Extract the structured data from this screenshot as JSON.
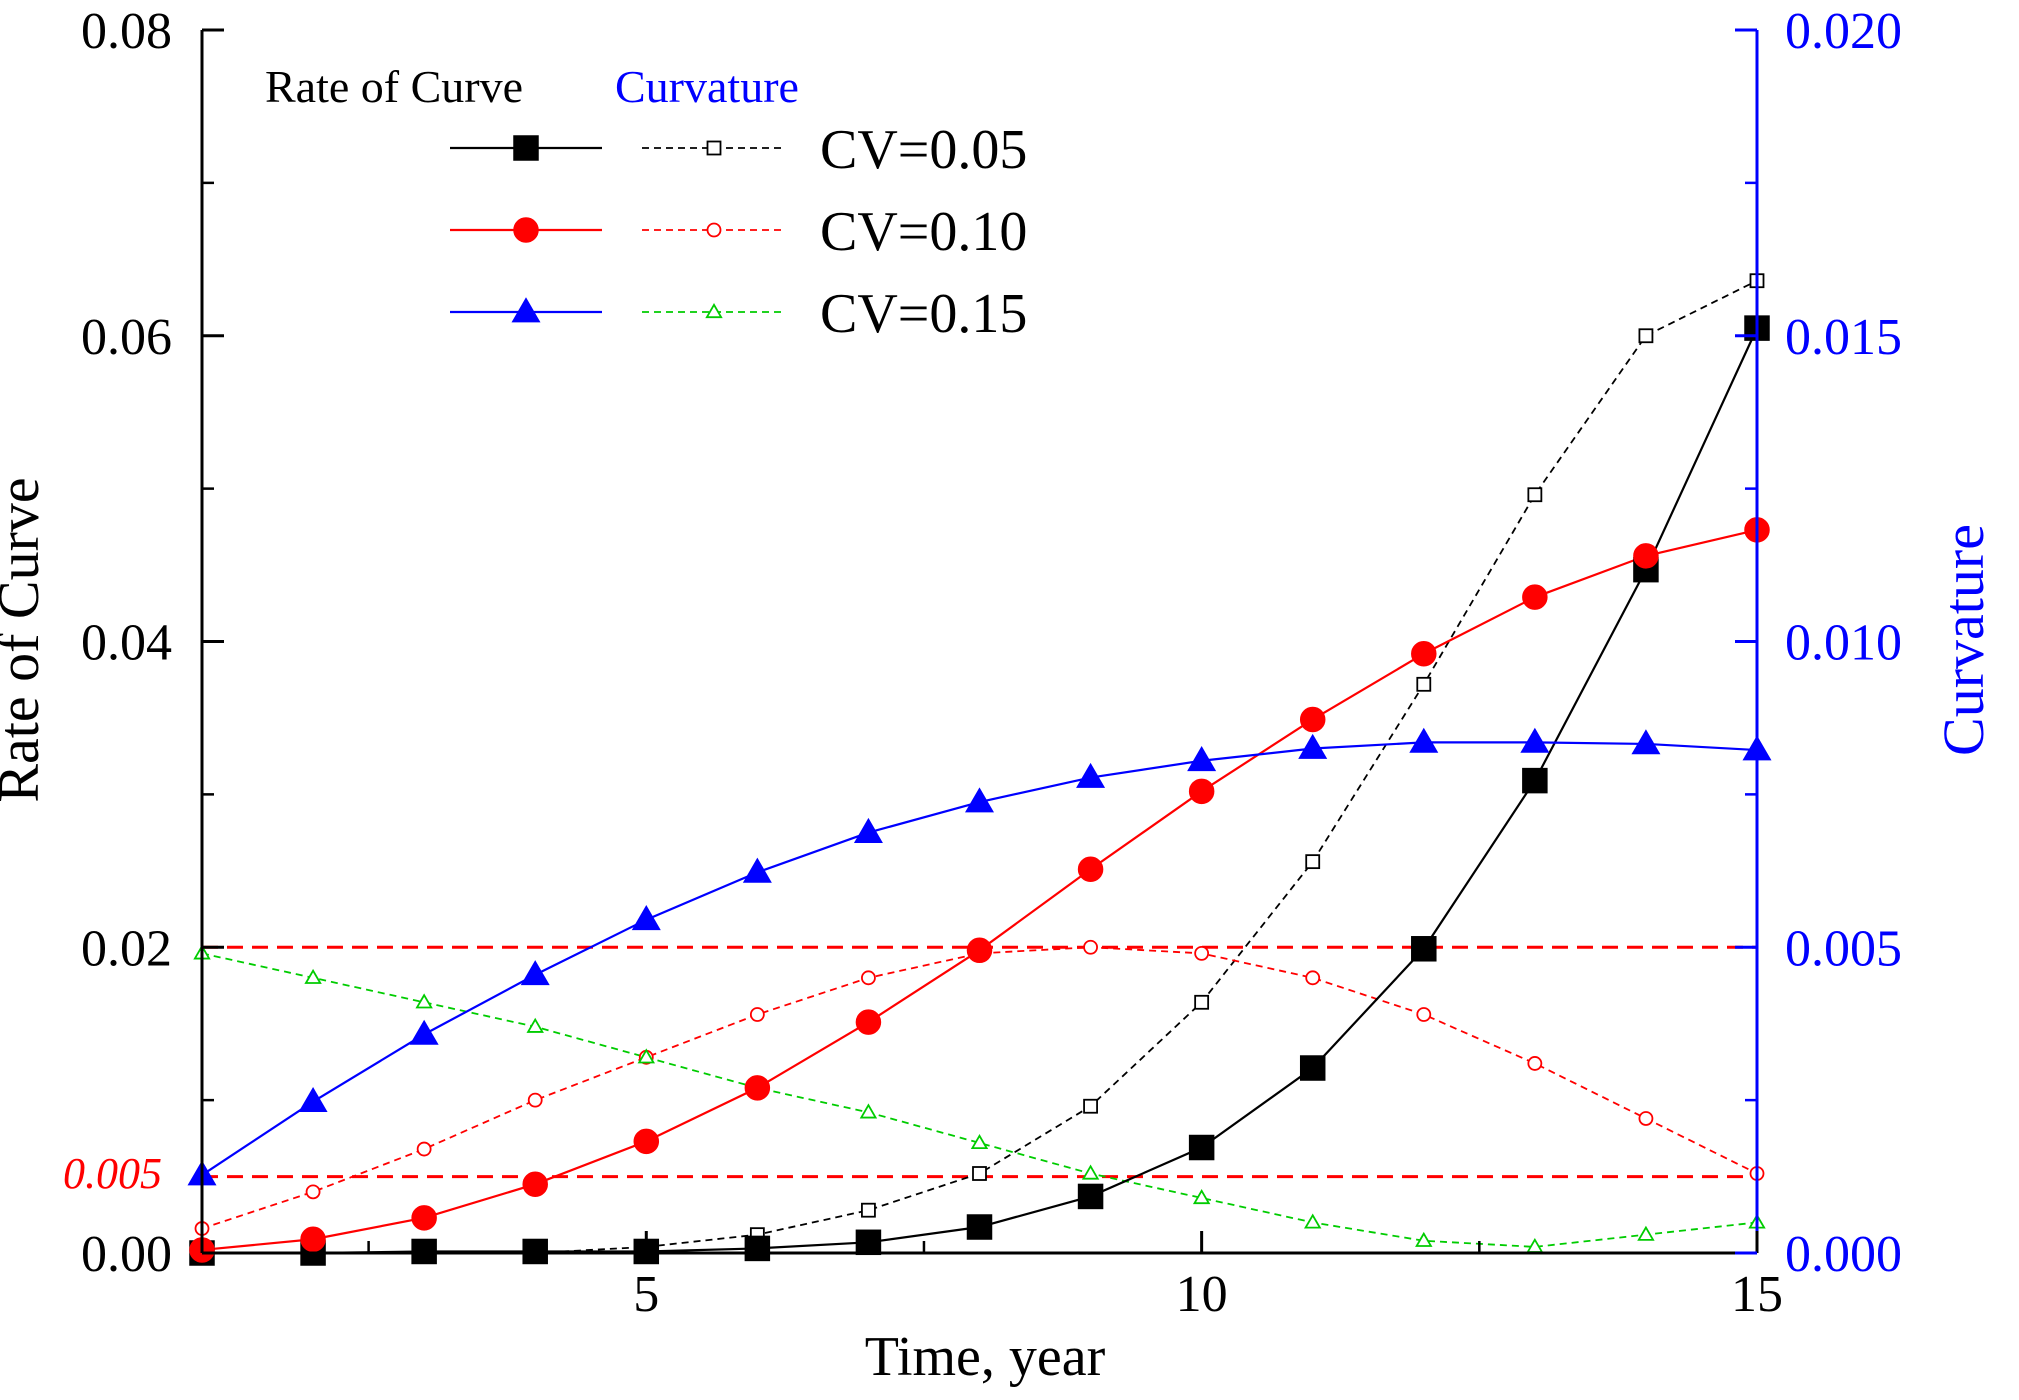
{
  "chart_data": {
    "type": "line",
    "xlabel": "Time, year",
    "ylabel_left": "Rate of Curve",
    "ylabel_right": "Curvature",
    "xlim": [
      1,
      15
    ],
    "ylim_left": [
      0,
      0.08
    ],
    "ylim_right": [
      0,
      0.02
    ],
    "x_ticks": [
      5,
      10,
      15
    ],
    "x_tick_labels": [
      "5",
      "10",
      "15"
    ],
    "y_left_ticks": [
      0,
      0.02,
      0.04,
      0.06,
      0.08
    ],
    "y_left_tick_labels": [
      "0.00",
      "0.02",
      "0.04",
      "0.06",
      "0.08"
    ],
    "y_right_ticks": [
      0,
      0.005,
      0.01,
      0.015,
      0.02
    ],
    "y_right_tick_labels": [
      "0.000",
      "0.005",
      "0.010",
      "0.015",
      "0.020"
    ],
    "grid": false,
    "legend": {
      "placement": "top-left",
      "group_rate_title": "Rate of Curve",
      "group_curvature_title": "Curvature",
      "entries": [
        "CV=0.05",
        "CV=0.10",
        "CV=0.15"
      ]
    },
    "annotation": {
      "label": "0.005",
      "color": "#ff0000",
      "reference_lines_left_axis": [
        0.005,
        0.02
      ]
    },
    "x": [
      1,
      2,
      3,
      4,
      5,
      6,
      7,
      8,
      9,
      10,
      11,
      12,
      13,
      14,
      15
    ],
    "rate_series": [
      {
        "name": "CV=0.05",
        "color": "#000000",
        "marker": "square",
        "values": [
          0.0,
          0.0,
          0.0001,
          0.0001,
          0.0001,
          0.0003,
          0.0007,
          0.0017,
          0.0037,
          0.0069,
          0.0121,
          0.0199,
          0.0309,
          0.0447,
          0.0605
        ]
      },
      {
        "name": "CV=0.10",
        "color": "#ff0000",
        "marker": "circle",
        "values": [
          0.0002,
          0.0009,
          0.0023,
          0.0045,
          0.0073,
          0.0108,
          0.0151,
          0.0198,
          0.0251,
          0.0302,
          0.0349,
          0.0392,
          0.0429,
          0.0456,
          0.0473
        ]
      },
      {
        "name": "CV=0.15",
        "color": "#0000ff",
        "marker": "triangle",
        "values": [
          0.0051,
          0.0099,
          0.0143,
          0.0182,
          0.0218,
          0.0249,
          0.0275,
          0.0295,
          0.0311,
          0.0322,
          0.033,
          0.0334,
          0.0334,
          0.0333,
          0.0329
        ]
      }
    ],
    "curvature_series": [
      {
        "name": "CV=0.05",
        "color": "#000000",
        "marker": "open-square",
        "values": [
          0.0,
          0.0,
          0.0,
          0.0,
          0.0001,
          0.0003,
          0.0007,
          0.0013,
          0.0024,
          0.0041,
          0.0064,
          0.0093,
          0.0124,
          0.015,
          0.0159
        ]
      },
      {
        "name": "CV=0.10",
        "color": "#ff0000",
        "marker": "open-circle",
        "values": [
          0.0004,
          0.001,
          0.0017,
          0.0025,
          0.0032,
          0.0039,
          0.0045,
          0.0049,
          0.005,
          0.0049,
          0.0045,
          0.0039,
          0.0031,
          0.0022,
          0.0013
        ]
      },
      {
        "name": "CV=0.15",
        "color": "#00cc00",
        "marker": "open-triangle",
        "values": [
          0.0049,
          0.0045,
          0.0041,
          0.0037,
          0.0032,
          0.0027,
          0.0023,
          0.0018,
          0.0013,
          0.0009,
          0.0005,
          0.0002,
          0.0001,
          0.0003,
          0.0005
        ]
      }
    ]
  }
}
